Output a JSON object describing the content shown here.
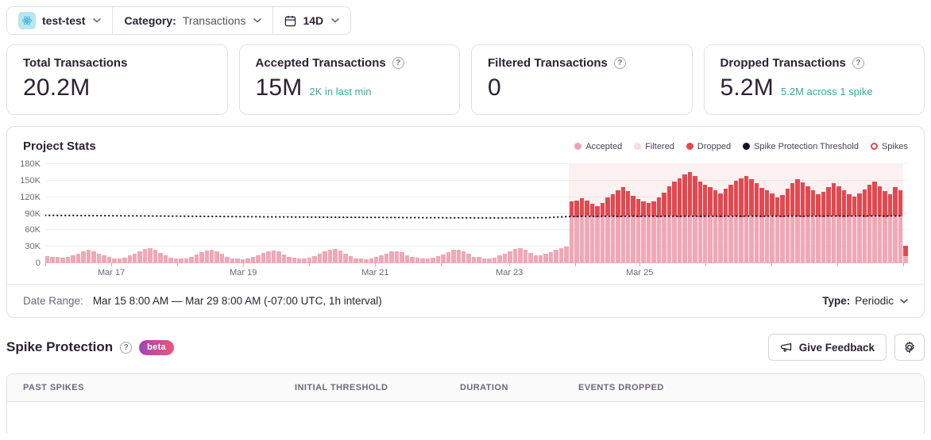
{
  "topbar": {
    "project_name": "test-test",
    "category_label": "Category:",
    "category_value": "Transactions",
    "period": "14D"
  },
  "icons": {
    "help_glyph": "?"
  },
  "cards": [
    {
      "title": "Total Transactions",
      "value": "20.2M",
      "note": ""
    },
    {
      "title": "Accepted Transactions",
      "value": "15M",
      "note": "2K in last min"
    },
    {
      "title": "Filtered Transactions",
      "value": "0",
      "note": ""
    },
    {
      "title": "Dropped Transactions",
      "value": "5.2M",
      "note": "5.2M across 1 spike"
    }
  ],
  "chart": {
    "title": "Project Stats",
    "legend": [
      {
        "label": "Accepted",
        "color": "#efa0b2",
        "style": "dot"
      },
      {
        "label": "Filtered",
        "color": "#f8dde4",
        "style": "dot"
      },
      {
        "label": "Dropped",
        "color": "#e4484f",
        "style": "dot"
      },
      {
        "label": "Spike Protection Threshold",
        "color": "#1d1127",
        "style": "dot"
      },
      {
        "label": "Spikes",
        "color": "#e4484f",
        "style": "ring"
      }
    ]
  },
  "chart_data": {
    "type": "bar",
    "stacked": true,
    "title": "Project Stats",
    "x_range": [
      "Mar 15 8:00 AM",
      "Mar 29 8:00 AM"
    ],
    "unit": "transactions per interval (thousands)",
    "ylim_k": [
      0,
      180
    ],
    "yticks_k": [
      0,
      30,
      60,
      90,
      120,
      150,
      180
    ],
    "x_ticks": [
      {
        "pos": 0.0,
        "label": ""
      },
      {
        "pos": 0.0765,
        "label": "Mar 17"
      },
      {
        "pos": 0.153,
        "label": ""
      },
      {
        "pos": 0.2295,
        "label": "Mar 19"
      },
      {
        "pos": 0.306,
        "label": ""
      },
      {
        "pos": 0.3825,
        "label": "Mar 21"
      },
      {
        "pos": 0.459,
        "label": ""
      },
      {
        "pos": 0.538,
        "label": "Mar 23"
      },
      {
        "pos": 0.614,
        "label": ""
      },
      {
        "pos": 0.689,
        "label": "Mar 25"
      },
      {
        "pos": 0.765,
        "label": ""
      },
      {
        "pos": 0.8415,
        "label": ""
      },
      {
        "pos": 0.918,
        "label": ""
      },
      {
        "pos": 0.9945,
        "label": ""
      }
    ],
    "series": [
      {
        "name": "Accepted",
        "color": "#f1a8b6",
        "values_k": [
          13,
          12,
          11,
          10,
          12,
          15,
          18,
          22,
          24,
          22,
          18,
          14,
          11,
          9,
          8,
          10,
          14,
          18,
          22,
          26,
          27,
          24,
          19,
          14,
          10,
          8,
          8,
          9,
          12,
          16,
          20,
          23,
          24,
          22,
          17,
          12,
          9,
          8,
          7,
          9,
          12,
          15,
          19,
          22,
          23,
          21,
          16,
          12,
          10,
          9,
          8,
          10,
          13,
          17,
          21,
          25,
          26,
          23,
          18,
          13,
          9,
          8,
          7,
          9,
          11,
          14,
          18,
          21,
          22,
          20,
          15,
          11,
          10,
          8,
          8,
          10,
          13,
          16,
          20,
          24,
          25,
          22,
          17,
          12,
          11,
          9,
          8,
          10,
          14,
          18,
          22,
          26,
          27,
          24,
          19,
          14,
          14,
          17,
          20,
          24,
          28,
          30,
          85,
          84,
          85,
          86,
          85,
          84,
          85,
          86,
          85,
          84,
          85,
          86,
          85,
          84,
          85,
          86,
          85,
          84,
          85,
          86,
          85,
          84,
          85,
          86,
          85,
          84,
          85,
          86,
          85,
          84,
          85,
          86,
          85,
          84,
          85,
          86,
          85,
          84,
          85,
          86,
          85,
          84,
          85,
          86,
          85,
          84,
          85,
          86,
          85,
          84,
          85,
          86,
          85,
          84,
          85,
          86,
          85,
          84,
          85,
          86,
          85,
          84,
          85,
          86,
          85,
          13
        ]
      },
      {
        "name": "Dropped",
        "color": "#e4484f",
        "start_index": 102,
        "values_k": [
          27,
          30,
          33,
          28,
          23,
          20,
          25,
          33,
          40,
          48,
          53,
          45,
          37,
          33,
          27,
          23,
          27,
          35,
          43,
          53,
          63,
          70,
          77,
          80,
          73,
          65,
          58,
          52,
          47,
          43,
          50,
          57,
          65,
          70,
          73,
          67,
          60,
          53,
          47,
          41,
          35,
          40,
          50,
          60,
          67,
          63,
          55,
          47,
          40,
          45,
          53,
          60,
          55,
          48,
          41,
          35,
          42,
          50,
          57,
          62,
          55,
          47,
          41,
          52,
          48,
          19
        ]
      },
      {
        "name": "Filtered",
        "color": "#f8dde4",
        "constant_k": 0
      }
    ],
    "threshold": {
      "name": "Spike Protection Threshold",
      "color": "#1d1127",
      "style": "dotted",
      "points": [
        [
          0,
          87
        ],
        [
          0.08,
          86.2
        ],
        [
          0.17,
          85.3
        ],
        [
          0.26,
          84.3
        ],
        [
          0.35,
          83.4
        ],
        [
          0.44,
          82.6
        ],
        [
          0.52,
          82.2
        ],
        [
          0.58,
          82.6
        ],
        [
          0.607,
          84.8
        ],
        [
          0.68,
          85.2
        ],
        [
          0.78,
          85.4
        ],
        [
          0.88,
          85.6
        ],
        [
          0.994,
          86
        ]
      ]
    },
    "spike_region": {
      "start_frac": 0.607,
      "end_frac": 0.9945,
      "fill": "rgba(228,72,79,0.08)",
      "label": "1 spike"
    }
  },
  "footer": {
    "date_range_label": "Date Range:",
    "date_range_value": "Mar 15 8:00 AM — Mar 29 8:00 AM (-07:00 UTC, 1h interval)",
    "type_label": "Type:",
    "type_value": "Periodic"
  },
  "section": {
    "title": "Spike Protection",
    "badge": "beta",
    "feedback_button": "Give Feedback"
  },
  "table": {
    "headers": [
      "PAST SPIKES",
      "INITIAL THRESHOLD",
      "DURATION",
      "EVENTS DROPPED"
    ]
  },
  "colors": {
    "accepted": "#f1a8b6",
    "filtered": "#f8dde4",
    "dropped": "#e4484f",
    "threshold": "#1d1127",
    "spike_region_fill": "rgba(228,72,79,0.08)",
    "note_teal": "#3da89e",
    "border": "#e4dee9",
    "text_primary": "#2b2233",
    "text_muted": "#6f6878"
  }
}
